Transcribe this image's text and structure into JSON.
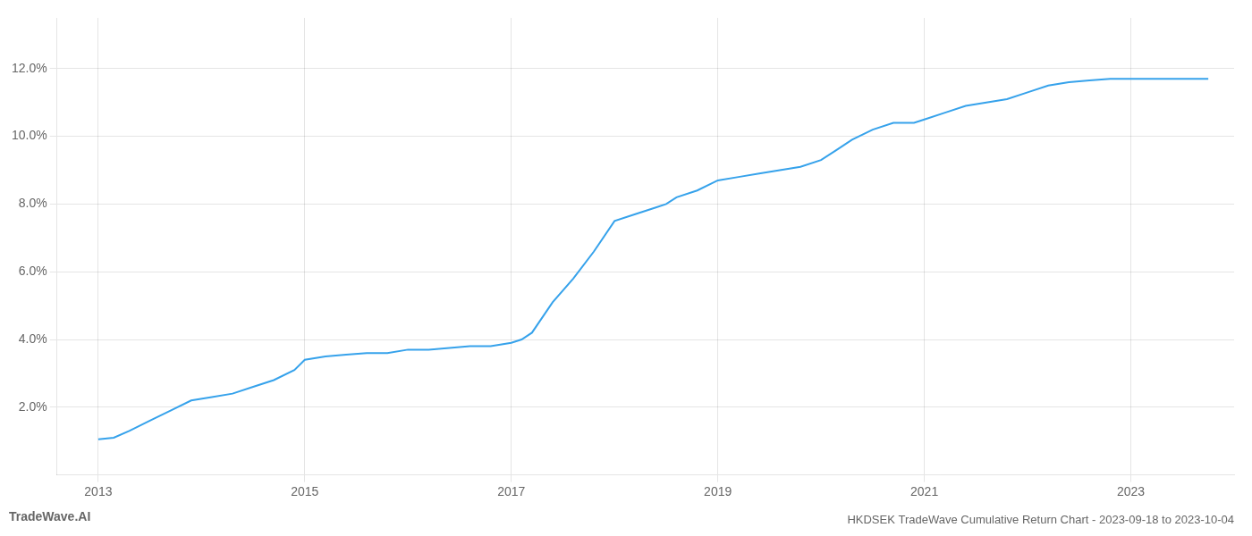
{
  "chart_data": {
    "type": "line",
    "title": "HKDSEK TradeWave Cumulative Return Chart - 2023-09-18 to 2023-10-04",
    "annotations": [
      "TradeWave.AI"
    ],
    "x": [
      2013.0,
      2013.15,
      2013.3,
      2013.5,
      2013.7,
      2013.9,
      2014.1,
      2014.3,
      2014.5,
      2014.7,
      2014.9,
      2015.0,
      2015.2,
      2015.4,
      2015.6,
      2015.8,
      2016.0,
      2016.2,
      2016.4,
      2016.6,
      2016.8,
      2017.0,
      2017.1,
      2017.2,
      2017.4,
      2017.6,
      2017.8,
      2018.0,
      2018.2,
      2018.4,
      2018.5,
      2018.6,
      2018.8,
      2019.0,
      2019.2,
      2019.4,
      2019.6,
      2019.8,
      2020.0,
      2020.15,
      2020.3,
      2020.5,
      2020.7,
      2020.9,
      2021.0,
      2021.2,
      2021.4,
      2021.6,
      2021.8,
      2022.0,
      2022.2,
      2022.4,
      2022.6,
      2022.8,
      2023.0,
      2023.3,
      2023.6,
      2023.75
    ],
    "values": [
      0.0105,
      0.011,
      0.013,
      0.016,
      0.019,
      0.022,
      0.023,
      0.024,
      0.026,
      0.028,
      0.031,
      0.034,
      0.035,
      0.0355,
      0.036,
      0.036,
      0.037,
      0.037,
      0.0375,
      0.038,
      0.038,
      0.039,
      0.04,
      0.042,
      0.051,
      0.058,
      0.066,
      0.075,
      0.077,
      0.079,
      0.08,
      0.082,
      0.084,
      0.087,
      0.088,
      0.089,
      0.09,
      0.091,
      0.093,
      0.096,
      0.099,
      0.102,
      0.104,
      0.104,
      0.105,
      0.107,
      0.109,
      0.11,
      0.111,
      0.113,
      0.115,
      0.116,
      0.1165,
      0.117,
      0.117,
      0.117,
      0.117,
      0.117
    ],
    "xlim": [
      2012.6,
      2024.0
    ],
    "xticks": [
      2013,
      2015,
      2017,
      2019,
      2021,
      2023
    ],
    "ylim": [
      0.0,
      0.135
    ],
    "yticks": [
      {
        "value": 0.02,
        "label": "2.0%"
      },
      {
        "value": 0.04,
        "label": "4.0%"
      },
      {
        "value": 0.06,
        "label": "6.0%"
      },
      {
        "value": 0.08,
        "label": "8.0%"
      },
      {
        "value": 0.1,
        "label": "10.0%"
      },
      {
        "value": 0.12,
        "label": "12.0%"
      }
    ],
    "grid": true
  }
}
